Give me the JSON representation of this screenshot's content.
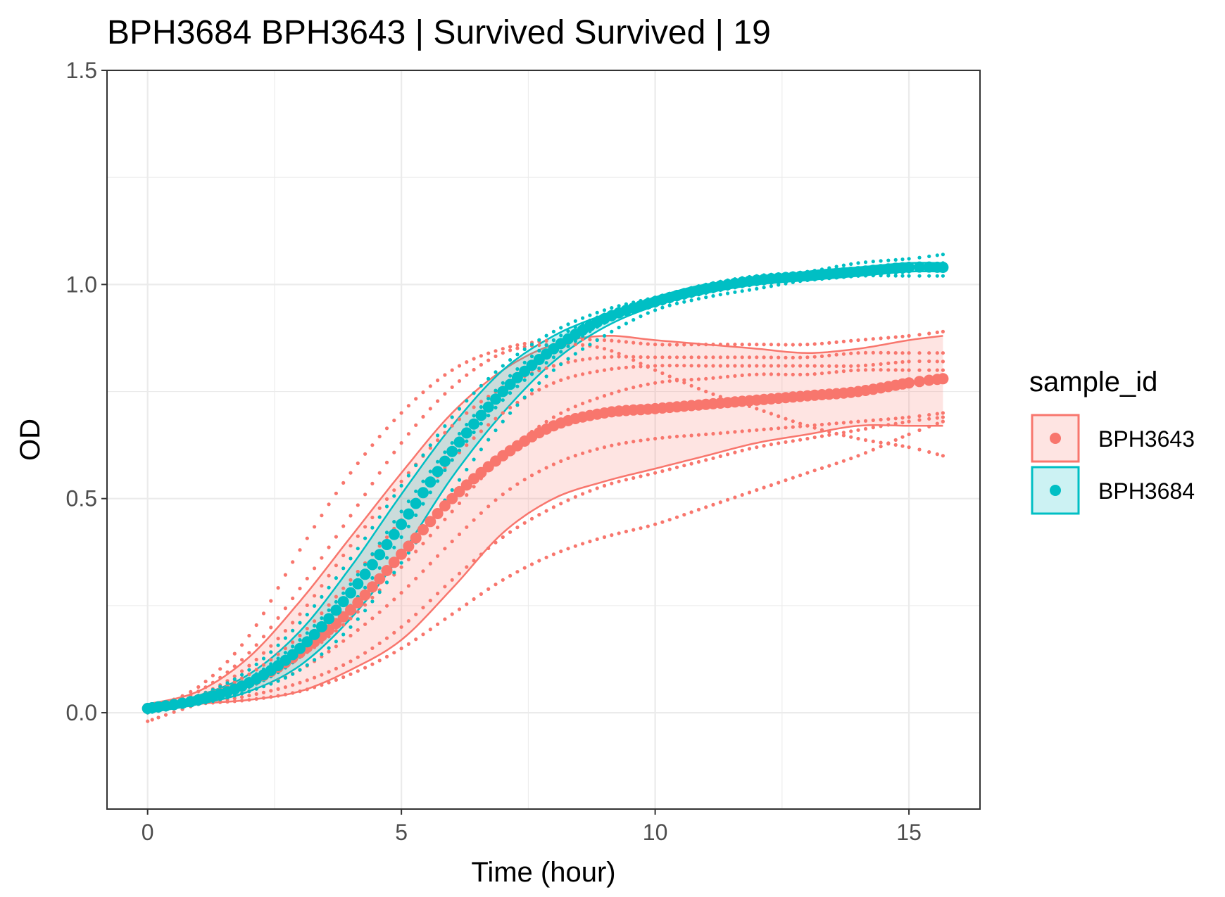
{
  "chart_data": {
    "type": "line",
    "title": "BPH3684 BPH3643 | Survived Survived | 19",
    "xlabel": "Time (hour)",
    "ylabel": "OD",
    "xlim": [
      -0.8,
      16.4
    ],
    "ylim": [
      -0.225,
      1.5
    ],
    "x_ticks": [
      0,
      5,
      10,
      15
    ],
    "x_tick_labels": [
      "0",
      "5",
      "10",
      "15"
    ],
    "y_ticks": [
      0.0,
      0.5,
      1.0,
      1.5
    ],
    "y_tick_labels": [
      "0.0",
      "0.5",
      "1.0",
      "1.5"
    ],
    "grid": true,
    "legend": {
      "title": "sample_id",
      "position": "right"
    },
    "series": [
      {
        "name": "BPH3643",
        "color": "#F8766D",
        "mean": {
          "x": [
            0,
            1,
            2,
            3,
            4,
            5,
            6,
            7,
            8,
            9,
            10,
            11,
            12,
            13,
            14,
            15,
            15.67
          ],
          "y": [
            0.01,
            0.03,
            0.07,
            0.14,
            0.24,
            0.37,
            0.5,
            0.6,
            0.67,
            0.7,
            0.71,
            0.72,
            0.73,
            0.74,
            0.75,
            0.77,
            0.78
          ]
        },
        "ribbon_upper": {
          "x": [
            0,
            1,
            2,
            3,
            4,
            5,
            6,
            7,
            8,
            9,
            10,
            11,
            12,
            13,
            14,
            15,
            15.67
          ],
          "y": [
            0.02,
            0.05,
            0.13,
            0.26,
            0.41,
            0.56,
            0.7,
            0.8,
            0.86,
            0.88,
            0.87,
            0.86,
            0.85,
            0.84,
            0.85,
            0.87,
            0.88
          ]
        },
        "ribbon_lower": {
          "x": [
            0,
            1,
            2,
            3,
            4,
            5,
            6,
            7,
            8,
            9,
            10,
            11,
            12,
            13,
            14,
            15,
            15.67
          ],
          "y": [
            0.0,
            0.02,
            0.03,
            0.05,
            0.1,
            0.17,
            0.29,
            0.42,
            0.5,
            0.54,
            0.57,
            0.6,
            0.63,
            0.65,
            0.67,
            0.67,
            0.67
          ]
        },
        "replicates": [
          {
            "x": [
              0,
              1,
              2,
              3,
              4,
              5,
              6,
              7,
              8,
              9,
              10,
              11,
              12,
              13,
              14,
              15,
              15.67
            ],
            "y": [
              0.01,
              0.06,
              0.18,
              0.38,
              0.56,
              0.7,
              0.8,
              0.85,
              0.87,
              0.87,
              0.86,
              0.86,
              0.86,
              0.86,
              0.87,
              0.88,
              0.89
            ]
          },
          {
            "x": [
              0,
              1,
              2,
              3,
              4,
              5,
              6,
              7,
              8,
              9,
              10,
              11,
              12,
              13,
              14,
              15,
              15.67
            ],
            "y": [
              0.01,
              0.05,
              0.14,
              0.29,
              0.46,
              0.63,
              0.76,
              0.84,
              0.86,
              0.85,
              0.8,
              0.75,
              0.71,
              0.67,
              0.64,
              0.62,
              0.6
            ]
          },
          {
            "x": [
              0,
              1,
              2,
              3,
              4,
              5,
              6,
              7,
              8,
              9,
              10,
              11,
              12,
              13,
              14,
              15,
              15.67
            ],
            "y": [
              0.01,
              0.04,
              0.11,
              0.23,
              0.39,
              0.54,
              0.67,
              0.76,
              0.81,
              0.83,
              0.83,
              0.83,
              0.83,
              0.83,
              0.84,
              0.84,
              0.84
            ]
          },
          {
            "x": [
              0,
              1,
              2,
              3,
              4,
              5,
              6,
              7,
              8,
              9,
              10,
              11,
              12,
              13,
              14,
              15,
              15.67
            ],
            "y": [
              0.01,
              0.04,
              0.09,
              0.18,
              0.31,
              0.45,
              0.59,
              0.7,
              0.77,
              0.8,
              0.81,
              0.81,
              0.81,
              0.81,
              0.81,
              0.82,
              0.82
            ]
          },
          {
            "x": [
              0,
              1,
              2,
              3,
              4,
              5,
              6,
              7,
              8,
              9,
              10,
              11,
              12,
              13,
              14,
              15,
              15.67
            ],
            "y": [
              0.01,
              0.03,
              0.07,
              0.13,
              0.22,
              0.34,
              0.47,
              0.6,
              0.69,
              0.74,
              0.77,
              0.78,
              0.79,
              0.79,
              0.8,
              0.8,
              0.8
            ]
          },
          {
            "x": [
              0,
              1,
              2,
              3,
              4,
              5,
              6,
              7,
              8,
              9,
              10,
              11,
              12,
              13,
              14,
              15,
              15.67
            ],
            "y": [
              -0.02,
              0.02,
              0.05,
              0.1,
              0.18,
              0.28,
              0.4,
              0.51,
              0.58,
              0.62,
              0.64,
              0.65,
              0.66,
              0.67,
              0.68,
              0.69,
              0.7
            ]
          },
          {
            "x": [
              0,
              1,
              2,
              3,
              4,
              5,
              6,
              7,
              8,
              9,
              10,
              11,
              12,
              13,
              14,
              15,
              15.67
            ],
            "y": [
              0.0,
              0.02,
              0.04,
              0.07,
              0.12,
              0.2,
              0.31,
              0.41,
              0.48,
              0.53,
              0.56,
              0.59,
              0.62,
              0.64,
              0.66,
              0.68,
              0.69
            ]
          },
          {
            "x": [
              0,
              1,
              2,
              3,
              4,
              5,
              6,
              7,
              8,
              9,
              10,
              11,
              12,
              13,
              14,
              15,
              15.67
            ],
            "y": [
              0.0,
              0.02,
              0.03,
              0.05,
              0.09,
              0.15,
              0.23,
              0.31,
              0.37,
              0.41,
              0.44,
              0.48,
              0.52,
              0.56,
              0.6,
              0.65,
              0.68
            ]
          }
        ]
      },
      {
        "name": "BPH3684",
        "color": "#00BFC4",
        "mean": {
          "x": [
            0,
            1,
            2,
            3,
            4,
            5,
            6,
            7,
            8,
            9,
            10,
            11,
            12,
            13,
            14,
            15,
            15.67
          ],
          "y": [
            0.01,
            0.03,
            0.07,
            0.15,
            0.28,
            0.44,
            0.61,
            0.75,
            0.85,
            0.92,
            0.96,
            0.99,
            1.01,
            1.02,
            1.03,
            1.04,
            1.04
          ]
        },
        "ribbon_upper": {
          "x": [
            0,
            1,
            2,
            3,
            4,
            5,
            6,
            7,
            8,
            9,
            10,
            11,
            12,
            13,
            14,
            15,
            15.67
          ],
          "y": [
            0.01,
            0.04,
            0.09,
            0.19,
            0.34,
            0.51,
            0.67,
            0.8,
            0.88,
            0.93,
            0.97,
            1.0,
            1.01,
            1.03,
            1.04,
            1.05,
            1.05
          ]
        },
        "ribbon_lower": {
          "x": [
            0,
            1,
            2,
            3,
            4,
            5,
            6,
            7,
            8,
            9,
            10,
            11,
            12,
            13,
            14,
            15,
            15.67
          ],
          "y": [
            0.0,
            0.02,
            0.05,
            0.11,
            0.22,
            0.37,
            0.55,
            0.7,
            0.82,
            0.9,
            0.95,
            0.98,
            1.0,
            1.01,
            1.02,
            1.03,
            1.03
          ]
        },
        "replicates": [
          {
            "x": [
              0,
              1,
              2,
              3,
              4,
              5,
              6,
              7,
              8,
              9,
              10,
              11,
              12,
              13,
              14,
              15,
              15.67
            ],
            "y": [
              0.01,
              0.04,
              0.1,
              0.21,
              0.36,
              0.53,
              0.69,
              0.81,
              0.89,
              0.94,
              0.97,
              1.0,
              1.02,
              1.03,
              1.05,
              1.06,
              1.07
            ]
          },
          {
            "x": [
              0,
              1,
              2,
              3,
              4,
              5,
              6,
              7,
              8,
              9,
              10,
              11,
              12,
              13,
              14,
              15,
              15.67
            ],
            "y": [
              0.01,
              0.03,
              0.08,
              0.17,
              0.3,
              0.47,
              0.63,
              0.77,
              0.87,
              0.93,
              0.96,
              0.99,
              1.01,
              1.02,
              1.03,
              1.04,
              1.05
            ]
          },
          {
            "x": [
              0,
              1,
              2,
              3,
              4,
              5,
              6,
              7,
              8,
              9,
              10,
              11,
              12,
              13,
              14,
              15,
              15.67
            ],
            "y": [
              0.01,
              0.03,
              0.06,
              0.13,
              0.25,
              0.41,
              0.59,
              0.73,
              0.83,
              0.91,
              0.95,
              0.98,
              1.0,
              1.01,
              1.02,
              1.03,
              1.04
            ]
          },
          {
            "x": [
              0,
              1,
              2,
              3,
              4,
              5,
              6,
              7,
              8,
              9,
              10,
              11,
              12,
              13,
              14,
              15,
              15.67
            ],
            "y": [
              0.0,
              0.02,
              0.05,
              0.1,
              0.2,
              0.35,
              0.52,
              0.68,
              0.8,
              0.88,
              0.94,
              0.97,
              0.99,
              1.01,
              1.02,
              1.02,
              1.02
            ]
          }
        ]
      }
    ]
  }
}
